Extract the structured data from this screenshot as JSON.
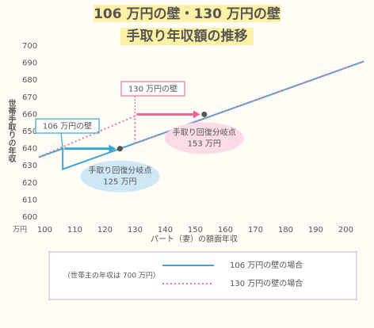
{
  "chart_data": {
    "type": "line",
    "title": "106 万円の壁・130 万円の壁",
    "subtitle": "手取り年収額の推移",
    "y_label": "世帯手取りの年収",
    "x_label": "パート（妻）の額面年収",
    "x_unit": "万円",
    "xlim": [
      97,
      207
    ],
    "xticks": [
      100,
      110,
      120,
      130,
      140,
      150,
      160,
      170,
      180,
      190,
      200
    ],
    "ylim": [
      600,
      700
    ],
    "yticks": [
      600,
      610,
      620,
      630,
      640,
      650,
      660,
      670,
      680,
      690,
      700
    ],
    "series": [
      {
        "name": "106 万円の壁の場合",
        "color": "#3aa7d4",
        "style": "solid",
        "wall": "106 万円の壁",
        "x": [
          98,
          106,
          106,
          206
        ],
        "values": [
          635,
          640,
          628,
          691
        ]
      },
      {
        "name": "130 万円の壁の場合",
        "color": "#e77aa0",
        "style": "dotted",
        "wall": "130 万円の壁",
        "x": [
          98,
          130,
          130,
          206
        ],
        "values": [
          635,
          659,
          643,
          691
        ]
      }
    ],
    "points": [
      {
        "x": 125,
        "y": 640,
        "label": [
          "手取り回復分岐点",
          "125 万円"
        ],
        "from": 106,
        "color": "#3aa7d4",
        "bubble": "#cfe8f6"
      },
      {
        "x": 153,
        "y": 660,
        "label": [
          "手取り回復分岐点",
          "153 万円"
        ],
        "from": 130,
        "color": "#e8658f",
        "bubble": "#fbdce6"
      }
    ],
    "legend_note": "（世帯主の年収は 700 万円）"
  }
}
